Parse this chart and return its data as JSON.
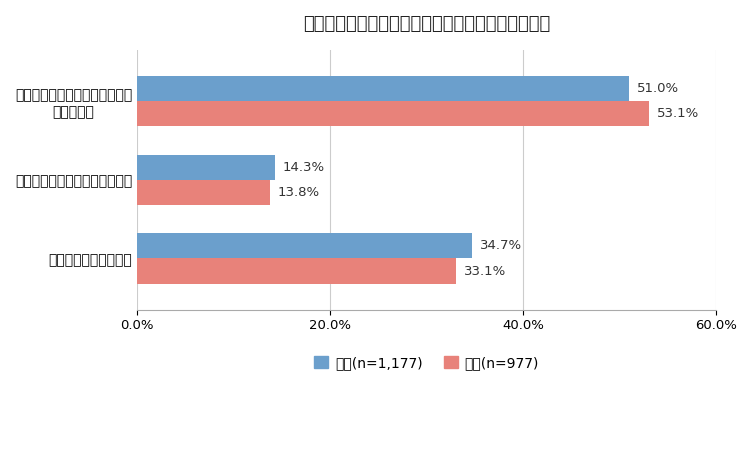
{
  "title": "お腹の不調についてあてはまるものはありますか？",
  "categories": [
    "あてはまるものはない",
    "既に医師から病気と診断された",
    "医師から診断されてはいないが\nお腹が不調"
  ],
  "male_values": [
    34.7,
    14.3,
    51.0
  ],
  "female_values": [
    33.1,
    13.8,
    53.1
  ],
  "male_color": "#6B9FCC",
  "female_color": "#E8827A",
  "xlim": [
    0,
    60
  ],
  "xticks": [
    0,
    20,
    40,
    60
  ],
  "xticklabels": [
    "0.0%",
    "20.0%",
    "40.0%",
    "60.0%"
  ],
  "legend_male": "男性(n=1,177)",
  "legend_female": "女性(n=977)",
  "background_color": "#ffffff",
  "bar_height": 0.32,
  "title_fontsize": 13,
  "label_fontsize": 9.5,
  "tick_fontsize": 9.5,
  "legend_fontsize": 10,
  "ytick_fontsize": 10
}
